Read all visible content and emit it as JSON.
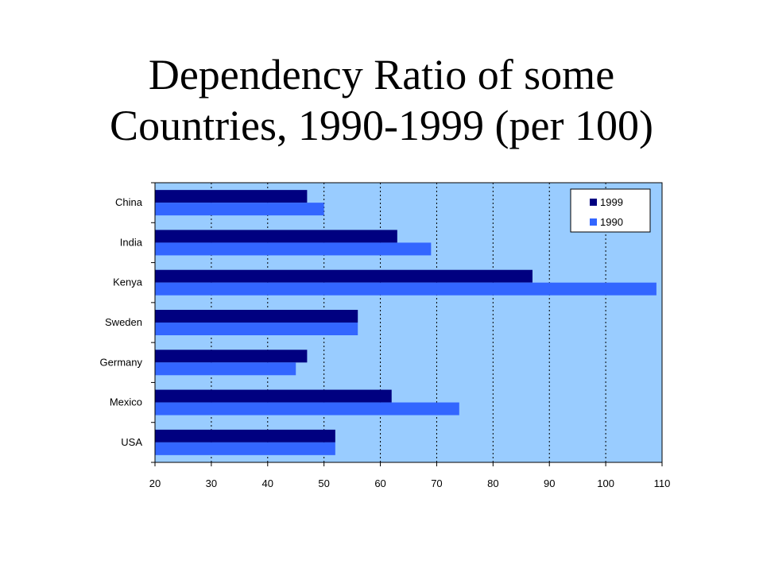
{
  "title_line1": "Dependency Ratio of some",
  "title_line2": "Countries, 1990-1999 (per 100)",
  "chart_data": {
    "type": "bar",
    "orientation": "horizontal",
    "categories": [
      "China",
      "India",
      "Kenya",
      "Sweden",
      "Germany",
      "Mexico",
      "USA"
    ],
    "series": [
      {
        "name": "1999",
        "color": "#000080",
        "values": [
          47,
          63,
          87,
          56,
          47,
          62,
          52
        ]
      },
      {
        "name": "1990",
        "color": "#3366FF",
        "values": [
          50,
          69,
          109,
          56,
          45,
          74,
          52
        ]
      }
    ],
    "xlim": [
      20,
      110
    ],
    "xticks": [
      20,
      30,
      40,
      50,
      60,
      70,
      80,
      90,
      100,
      110
    ],
    "plot_background": "#99CCFF",
    "gridlines": "vertical dotted",
    "legend": "top-right"
  }
}
